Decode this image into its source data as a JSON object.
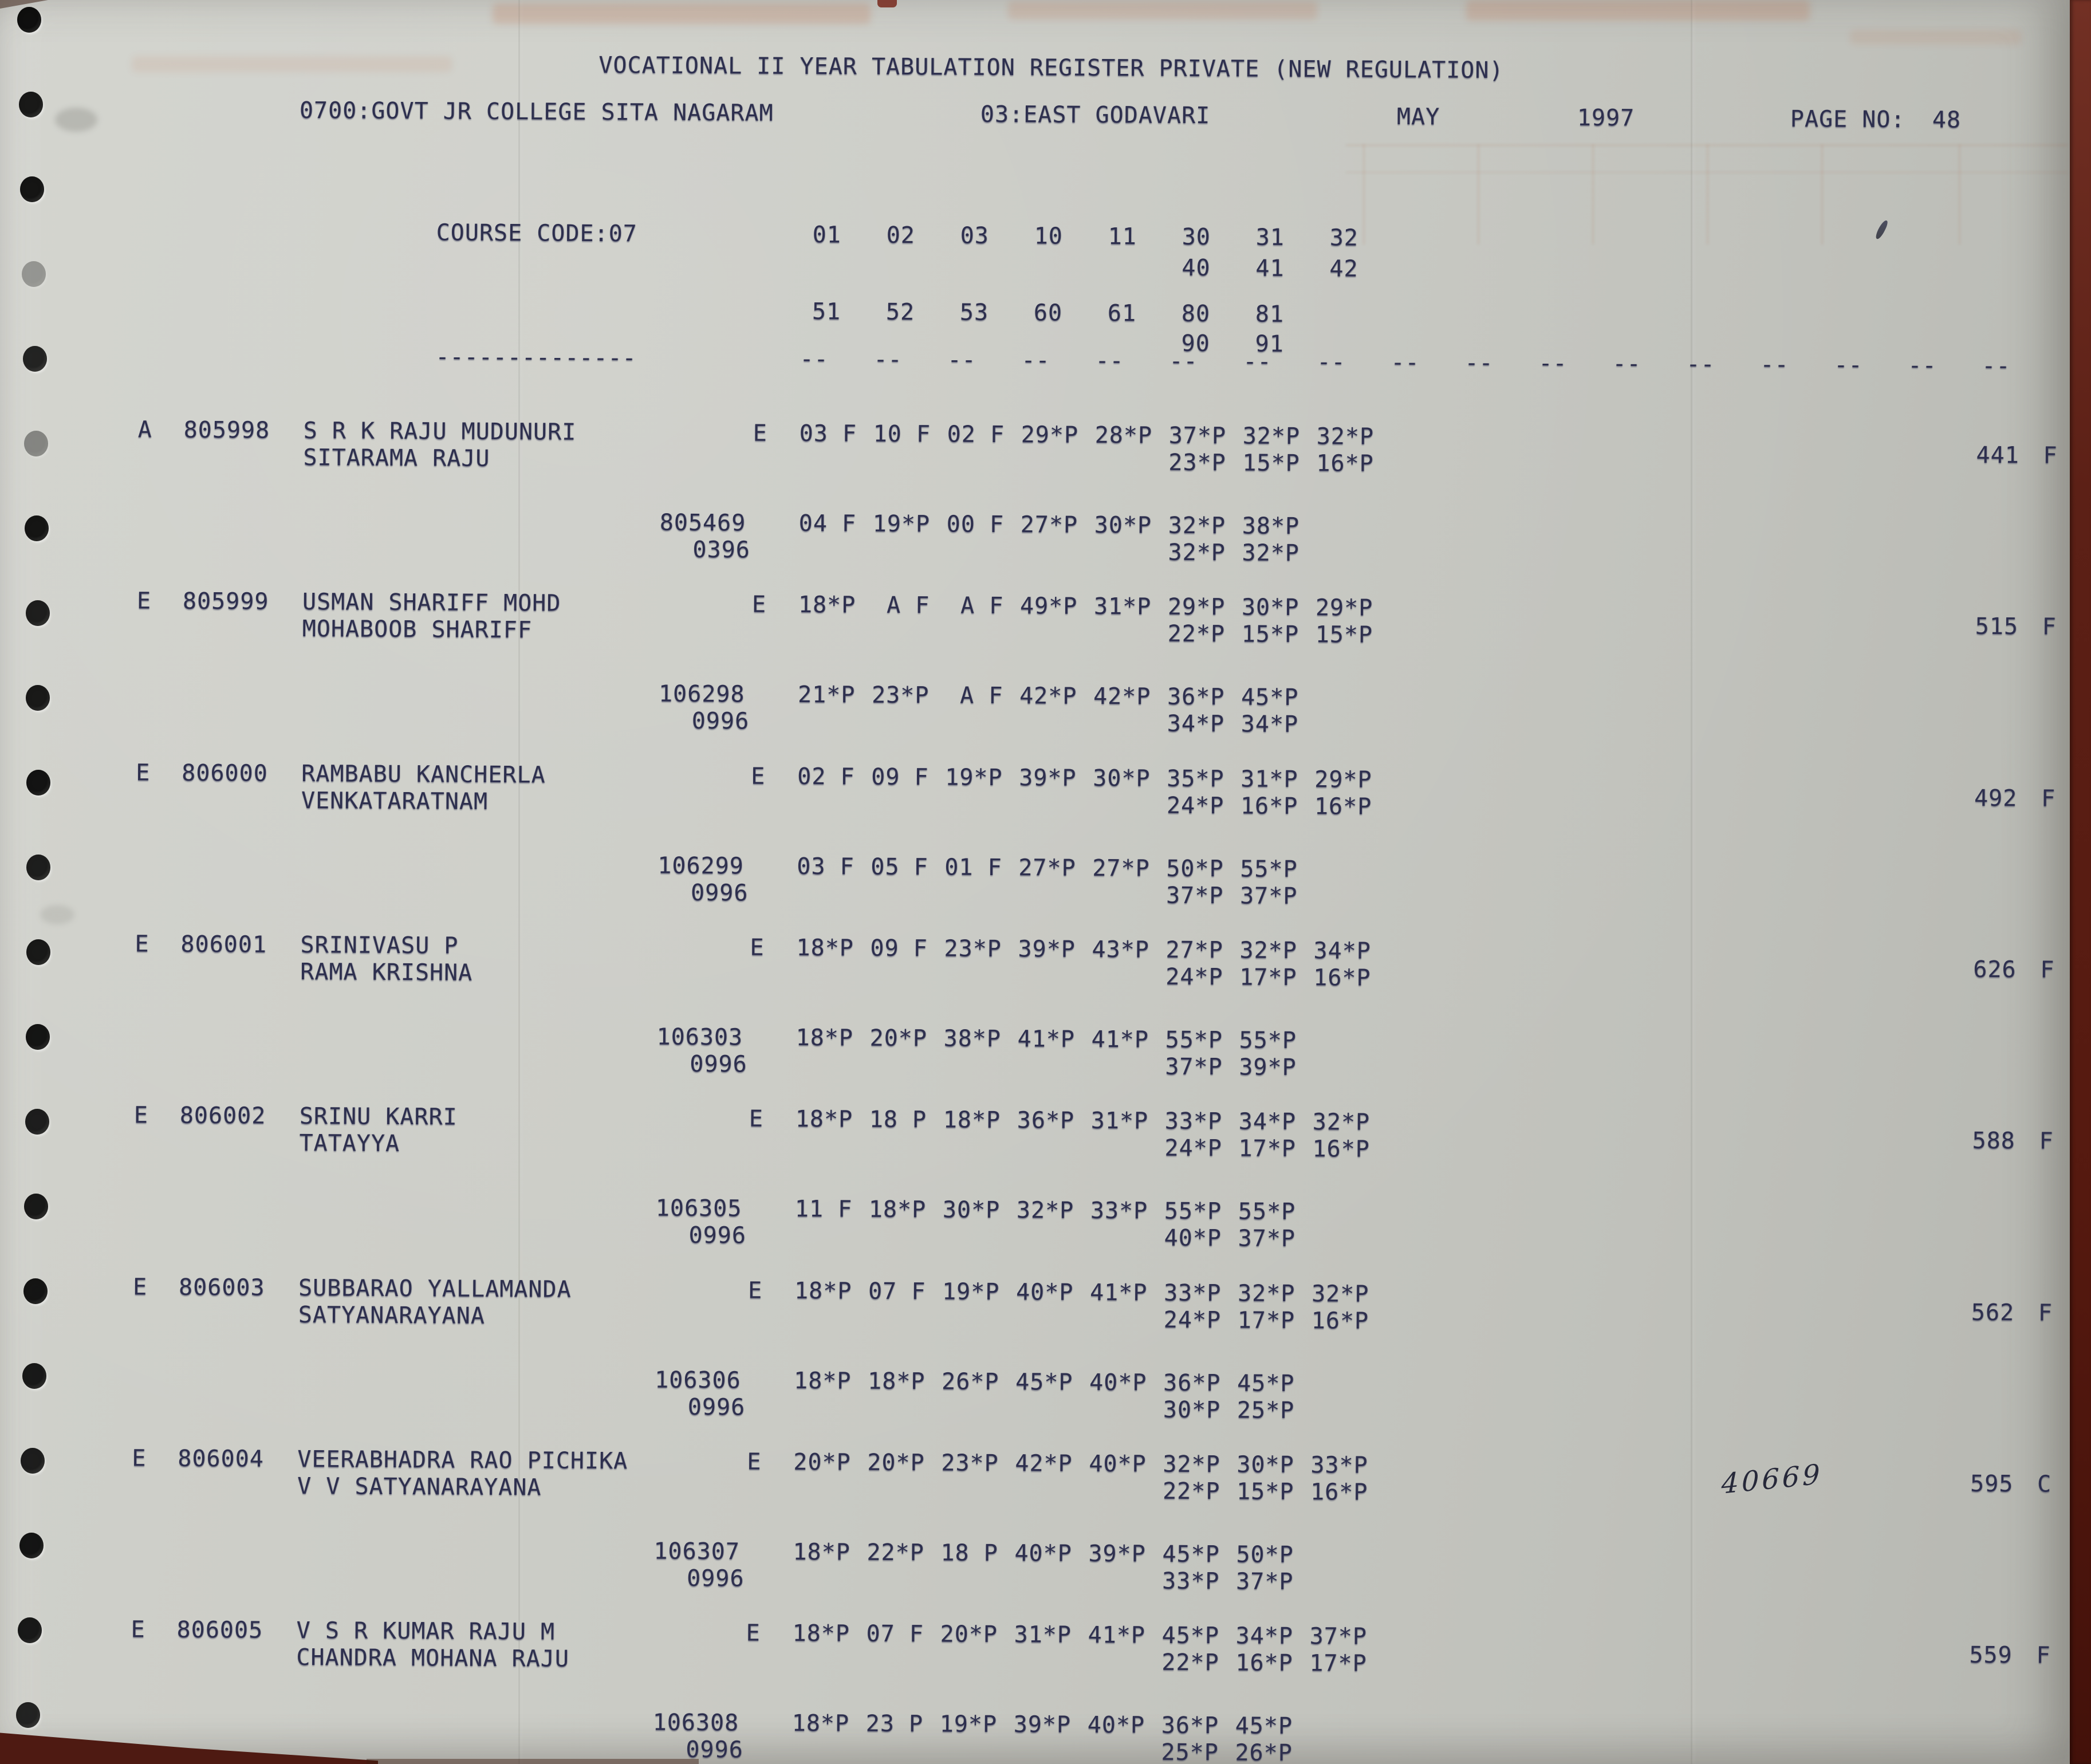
{
  "header": {
    "title": "VOCATIONAL II YEAR TABULATION REGISTER PRIVATE (NEW REGULATION)",
    "college": "0700:GOVT JR COLLEGE SITA NAGARAM",
    "district": "03:EAST GODAVARI",
    "month": "MAY",
    "year": "1997",
    "page_label": "PAGE NO:",
    "page_no": "48"
  },
  "course": {
    "label": "COURSE CODE:07",
    "code_rows": [
      [
        "01",
        "02",
        "03",
        "10",
        "11",
        "30",
        "31",
        "32"
      ],
      [
        "",
        "",
        "",
        "",
        "",
        "40",
        "41",
        "42"
      ],
      [
        "51",
        "52",
        "53",
        "60",
        "61",
        "80",
        "81",
        ""
      ],
      [
        "",
        "",
        "",
        "",
        "",
        "90",
        "91",
        ""
      ]
    ],
    "separator": {
      "left": "--------------",
      "dash": "--",
      "count": 17
    }
  },
  "students": [
    {
      "status": "A",
      "reg_no": "805998",
      "name": "S R K RAJU MUDUNURI",
      "guardian": "SITARAMA RAJU",
      "medium": "E",
      "attempt1": {
        "marks_row1": [
          "03 F",
          "10 F",
          "02 F",
          "29*P",
          "28*P",
          "37*P",
          "32*P",
          "32*P"
        ],
        "marks_row2": [
          "",
          "",
          "",
          "",
          "",
          "23*P",
          "15*P",
          "16*P"
        ]
      },
      "attempt2": {
        "reg_no": "805469",
        "session": "0396",
        "marks_row1": [
          "04 F",
          "19*P",
          "00 F",
          "27*P",
          "30*P",
          "32*P",
          "38*P",
          ""
        ],
        "marks_row2": [
          "",
          "",
          "",
          "",
          "",
          "32*P",
          "32*P",
          ""
        ]
      },
      "total": "441",
      "result": "F",
      "handwritten": ""
    },
    {
      "status": "E",
      "reg_no": "805999",
      "name": "USMAN SHARIFF MOHD",
      "guardian": "MOHABOOB SHARIFF",
      "medium": "E",
      "attempt1": {
        "marks_row1": [
          "18*P",
          " A F",
          " A F",
          "49*P",
          "31*P",
          "29*P",
          "30*P",
          "29*P"
        ],
        "marks_row2": [
          "",
          "",
          "",
          "",
          "",
          "22*P",
          "15*P",
          "15*P"
        ]
      },
      "attempt2": {
        "reg_no": "106298",
        "session": "0996",
        "marks_row1": [
          "21*P",
          "23*P",
          " A F",
          "42*P",
          "42*P",
          "36*P",
          "45*P",
          ""
        ],
        "marks_row2": [
          "",
          "",
          "",
          "",
          "",
          "34*P",
          "34*P",
          ""
        ]
      },
      "total": "515",
      "result": "F",
      "handwritten": ""
    },
    {
      "status": "E",
      "reg_no": "806000",
      "name": "RAMBABU KANCHERLA",
      "guardian": "VENKATARATNAM",
      "medium": "E",
      "attempt1": {
        "marks_row1": [
          "02 F",
          "09 F",
          "19*P",
          "39*P",
          "30*P",
          "35*P",
          "31*P",
          "29*P"
        ],
        "marks_row2": [
          "",
          "",
          "",
          "",
          "",
          "24*P",
          "16*P",
          "16*P"
        ]
      },
      "attempt2": {
        "reg_no": "106299",
        "session": "0996",
        "marks_row1": [
          "03 F",
          "05 F",
          "01 F",
          "27*P",
          "27*P",
          "50*P",
          "55*P",
          ""
        ],
        "marks_row2": [
          "",
          "",
          "",
          "",
          "",
          "37*P",
          "37*P",
          ""
        ]
      },
      "total": "492",
      "result": "F",
      "handwritten": ""
    },
    {
      "status": "E",
      "reg_no": "806001",
      "name": "SRINIVASU P",
      "guardian": "RAMA KRISHNA",
      "medium": "E",
      "attempt1": {
        "marks_row1": [
          "18*P",
          "09 F",
          "23*P",
          "39*P",
          "43*P",
          "27*P",
          "32*P",
          "34*P"
        ],
        "marks_row2": [
          "",
          "",
          "",
          "",
          "",
          "24*P",
          "17*P",
          "16*P"
        ]
      },
      "attempt2": {
        "reg_no": "106303",
        "session": "0996",
        "marks_row1": [
          "18*P",
          "20*P",
          "38*P",
          "41*P",
          "41*P",
          "55*P",
          "55*P",
          ""
        ],
        "marks_row2": [
          "",
          "",
          "",
          "",
          "",
          "37*P",
          "39*P",
          ""
        ]
      },
      "total": "626",
      "result": "F",
      "handwritten": ""
    },
    {
      "status": "E",
      "reg_no": "806002",
      "name": "SRINU KARRI",
      "guardian": "TATAYYA",
      "medium": "E",
      "attempt1": {
        "marks_row1": [
          "18*P",
          "18 P",
          "18*P",
          "36*P",
          "31*P",
          "33*P",
          "34*P",
          "32*P"
        ],
        "marks_row2": [
          "",
          "",
          "",
          "",
          "",
          "24*P",
          "17*P",
          "16*P"
        ]
      },
      "attempt2": {
        "reg_no": "106305",
        "session": "0996",
        "marks_row1": [
          "11 F",
          "18*P",
          "30*P",
          "32*P",
          "33*P",
          "55*P",
          "55*P",
          ""
        ],
        "marks_row2": [
          "",
          "",
          "",
          "",
          "",
          "40*P",
          "37*P",
          ""
        ]
      },
      "total": "588",
      "result": "F",
      "handwritten": ""
    },
    {
      "status": "E",
      "reg_no": "806003",
      "name": "SUBBARAO YALLAMANDA",
      "guardian": "SATYANARAYANA",
      "medium": "E",
      "attempt1": {
        "marks_row1": [
          "18*P",
          "07 F",
          "19*P",
          "40*P",
          "41*P",
          "33*P",
          "32*P",
          "32*P"
        ],
        "marks_row2": [
          "",
          "",
          "",
          "",
          "",
          "24*P",
          "17*P",
          "16*P"
        ]
      },
      "attempt2": {
        "reg_no": "106306",
        "session": "0996",
        "marks_row1": [
          "18*P",
          "18*P",
          "26*P",
          "45*P",
          "40*P",
          "36*P",
          "45*P",
          ""
        ],
        "marks_row2": [
          "",
          "",
          "",
          "",
          "",
          "30*P",
          "25*P",
          ""
        ]
      },
      "total": "562",
      "result": "F",
      "handwritten": ""
    },
    {
      "status": "E",
      "reg_no": "806004",
      "name": "VEERABHADRA RAO PICHIKA",
      "guardian": "V V SATYANARAYANA",
      "medium": "E",
      "attempt1": {
        "marks_row1": [
          "20*P",
          "20*P",
          "23*P",
          "42*P",
          "40*P",
          "32*P",
          "30*P",
          "33*P"
        ],
        "marks_row2": [
          "",
          "",
          "",
          "",
          "",
          "22*P",
          "15*P",
          "16*P"
        ]
      },
      "attempt2": {
        "reg_no": "106307",
        "session": "0996",
        "marks_row1": [
          "18*P",
          "22*P",
          "18 P",
          "40*P",
          "39*P",
          "45*P",
          "50*P",
          ""
        ],
        "marks_row2": [
          "",
          "",
          "",
          "",
          "",
          "33*P",
          "37*P",
          ""
        ]
      },
      "total": "595",
      "result": "C",
      "handwritten": "40669"
    },
    {
      "status": "E",
      "reg_no": "806005",
      "name": "V S R KUMAR RAJU M",
      "guardian": "CHANDRA MOHANA RAJU",
      "medium": "E",
      "attempt1": {
        "marks_row1": [
          "18*P",
          "07 F",
          "20*P",
          "31*P",
          "41*P",
          "45*P",
          "34*P",
          "37*P"
        ],
        "marks_row2": [
          "",
          "",
          "",
          "",
          "",
          "22*P",
          "16*P",
          "17*P"
        ]
      },
      "attempt2": {
        "reg_no": "106308",
        "session": "0996",
        "marks_row1": [
          "18*P",
          "23 P",
          "19*P",
          "39*P",
          "40*P",
          "36*P",
          "45*P",
          ""
        ],
        "marks_row2": [
          "",
          "",
          "",
          "",
          "",
          "25*P",
          "26*P",
          ""
        ]
      },
      "total": "559",
      "result": "F",
      "handwritten": ""
    }
  ],
  "colors": {
    "paper": "#c9cac4",
    "ink": "#2d2f4e",
    "backing": "#5c2016",
    "handwriting_ink": "#262839"
  }
}
